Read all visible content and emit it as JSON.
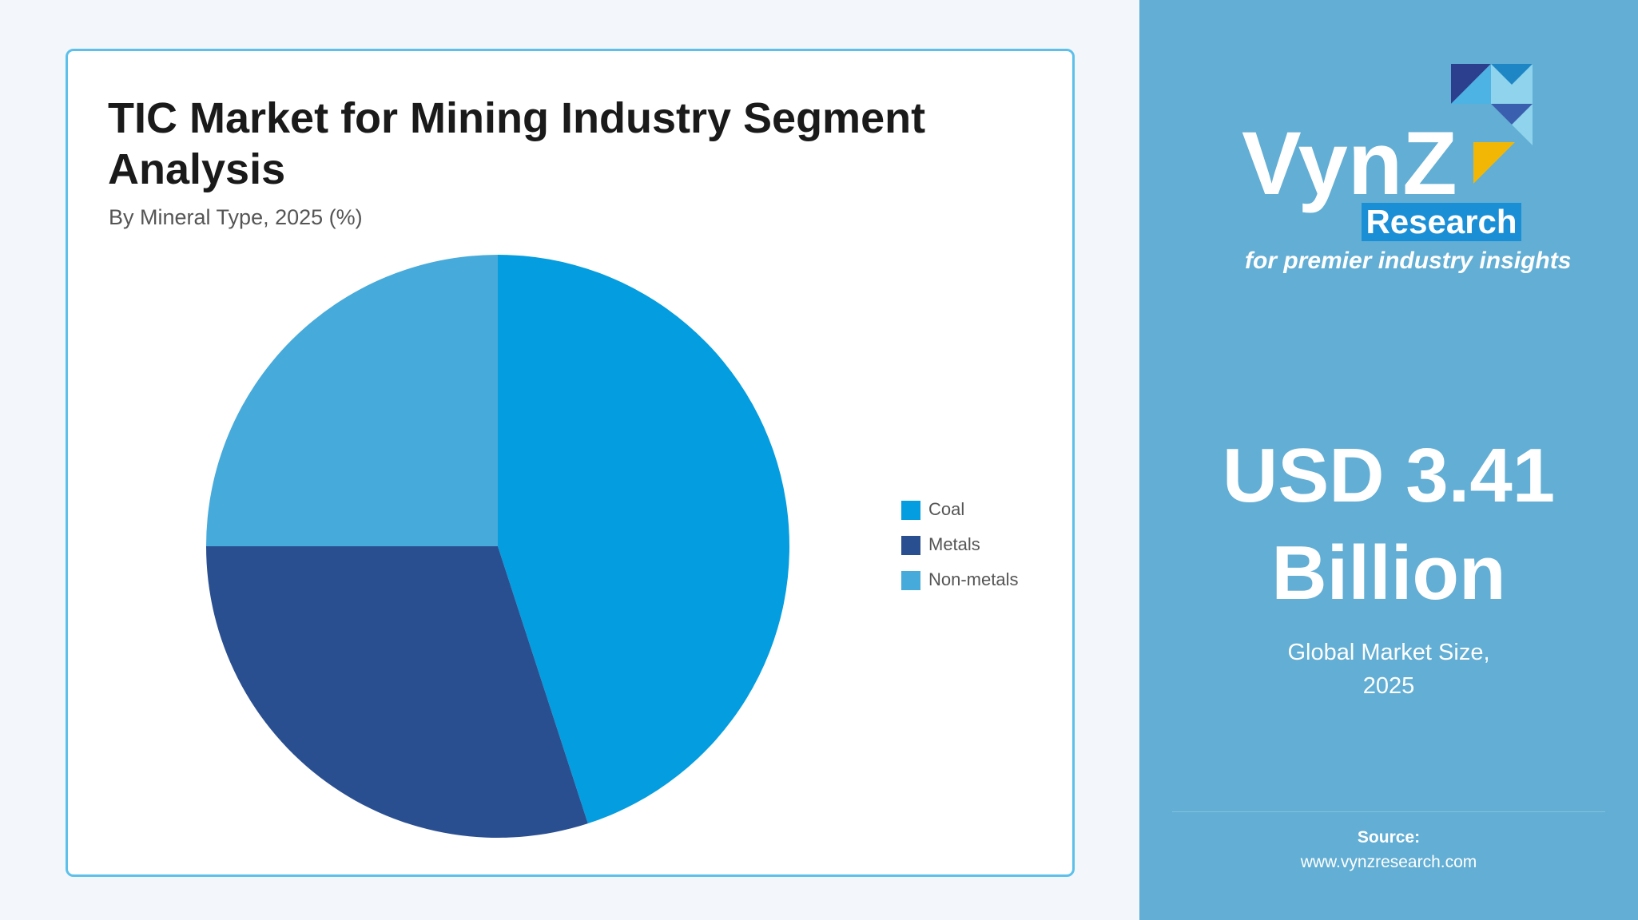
{
  "chart_data": {
    "type": "pie",
    "title": "TIC Market for Mining Industry Segment Analysis",
    "subtitle": "By Mineral Type, 2025 (%)",
    "categories": [
      "Coal",
      "Metals",
      "Non-metals"
    ],
    "values": [
      45,
      30,
      25
    ],
    "colors": [
      "#049ddf",
      "#2a4f91",
      "#46aadb"
    ]
  },
  "sidebar": {
    "logo": {
      "name": "VynZ",
      "tagline": "Research",
      "slogan": "for premier industry insights"
    },
    "kpi_value": "USD 3.41 Billion",
    "kpi_label": "Global Market Size, 2025",
    "source_label": "Source:",
    "source_url": "www.vynzresearch.com"
  }
}
